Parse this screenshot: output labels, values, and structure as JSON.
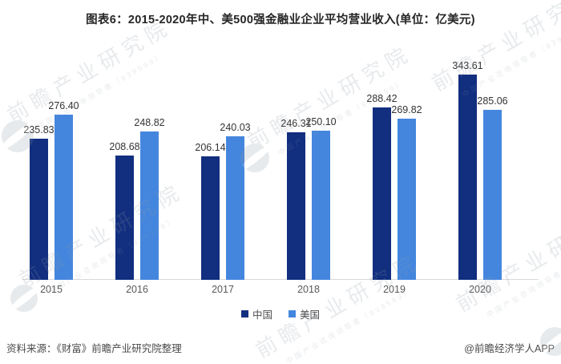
{
  "title": "图表6：2015-2020年中、美500强金融业企业平均营业收入(单位：亿美元)",
  "chart_data": {
    "type": "bar",
    "categories": [
      "2015",
      "2016",
      "2017",
      "2018",
      "2019",
      "2020"
    ],
    "series": [
      {
        "key": "china",
        "name": "中国",
        "color": "#112e7f",
        "values": [
          235.83,
          208.68,
          206.14,
          246.31,
          288.42,
          343.61
        ]
      },
      {
        "key": "usa",
        "name": "美国",
        "color": "#4486de",
        "values": [
          276.4,
          248.82,
          240.03,
          250.1,
          269.82,
          285.06
        ]
      }
    ],
    "unit": "亿美元",
    "ylim": [
      0,
      380
    ],
    "grid": false,
    "legend_position": "bottom",
    "value_labels": true,
    "value_label_decimals": 2
  },
  "footer": {
    "source": "资料来源：《财富》前瞻产业研究院整理",
    "credit": "@前瞻经济学人APP"
  },
  "watermark": {
    "text": "前瞻产业研究院",
    "subtext": "中国产业咨询领导者（839599）",
    "color": "#8d98a6"
  }
}
